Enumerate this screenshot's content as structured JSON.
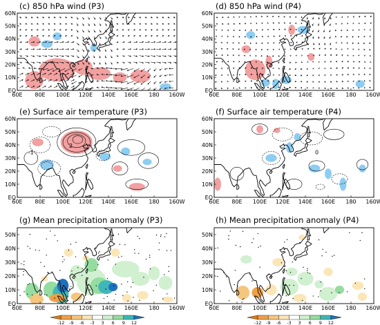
{
  "colors": {
    "warm_shading": "#f2a0a0",
    "cool_shading": "#8ecdf2",
    "coastline": "#000000",
    "colorbar": [
      "#e07a14",
      "#eda04a",
      "#f5c67e",
      "#fbe6b8",
      "#ffffff",
      "#d0f0d0",
      "#95dca0",
      "#3fb7b6",
      "#1f6fbd"
    ]
  },
  "panels": [
    {
      "id": "c",
      "title": "(c) 850 hPa wind (P3)",
      "type": "vector-map",
      "shading": "wind"
    },
    {
      "id": "d",
      "title": "(d) 850 hPa wind (P4)",
      "type": "vector-map",
      "shading": "wind"
    },
    {
      "id": "e",
      "title": "(e) Surface air temperature (P3)",
      "type": "contour-map",
      "shading": "temp"
    },
    {
      "id": "f",
      "title": "(f) Surface air temperature (P4)",
      "type": "contour-map",
      "shading": "temp"
    },
    {
      "id": "g",
      "title": "(g) Mean precipitation anomaly (P3)",
      "type": "filled-contour-map",
      "shading": "precip"
    },
    {
      "id": "h",
      "title": "(h) Mean precipitation anomaly (P4)",
      "type": "filled-contour-map",
      "shading": "precip"
    }
  ],
  "chart_data": [
    {
      "type": "heatmap",
      "panel": "c",
      "x_ticks": [
        "60E",
        "80E",
        "100E",
        "120E",
        "140E",
        "160E",
        "180",
        "160W"
      ],
      "y_ticks": [
        "EQ",
        "10N",
        "20N",
        "30N",
        "40N",
        "50N",
        "60N"
      ]
    },
    {
      "type": "heatmap",
      "panel": "d",
      "x_ticks": [
        "60E",
        "80E",
        "100E",
        "120E",
        "140E",
        "160E",
        "180",
        "160W"
      ],
      "y_ticks": [
        "EQ",
        "10N",
        "20N",
        "30N",
        "40N",
        "50N",
        "60N"
      ]
    },
    {
      "type": "heatmap",
      "panel": "e",
      "x_ticks": [
        "60E",
        "80E",
        "100E",
        "120E",
        "140E",
        "160E",
        "180",
        "160W"
      ],
      "y_ticks": [
        "EQ",
        "10N",
        "20N",
        "30N",
        "40N",
        "50N",
        "60N"
      ],
      "contour_labels": [
        "-1",
        "2"
      ]
    },
    {
      "type": "heatmap",
      "panel": "f",
      "x_ticks": [
        "60E",
        "80E",
        "100E",
        "120E",
        "140E",
        "160E",
        "180",
        "160W"
      ],
      "y_ticks": [
        "EQ",
        "10N",
        "20N",
        "30N",
        "40N",
        "50N",
        "60N"
      ],
      "contour_labels": [
        "0"
      ]
    },
    {
      "type": "heatmap",
      "panel": "g",
      "x_ticks": [
        "60E",
        "80E",
        "100E",
        "120E",
        "140E",
        "160E",
        "180",
        "160W"
      ],
      "y_ticks": [
        "EQ",
        "10N",
        "20N",
        "30N",
        "40N",
        "50N"
      ],
      "colorbar_ticks": [
        "-12",
        "-9",
        "-6",
        "-3",
        "3",
        "6",
        "9",
        "12"
      ]
    },
    {
      "type": "heatmap",
      "panel": "h",
      "x_ticks": [
        "60E",
        "80E",
        "100E",
        "120E",
        "140E",
        "160E",
        "180",
        "160W"
      ],
      "y_ticks": [
        "EQ",
        "10N",
        "20N",
        "30N",
        "40N",
        "50N"
      ],
      "colorbar_ticks": [
        "-12",
        "-9",
        "-6",
        "-3",
        "3",
        "6",
        "9",
        "12"
      ]
    }
  ]
}
